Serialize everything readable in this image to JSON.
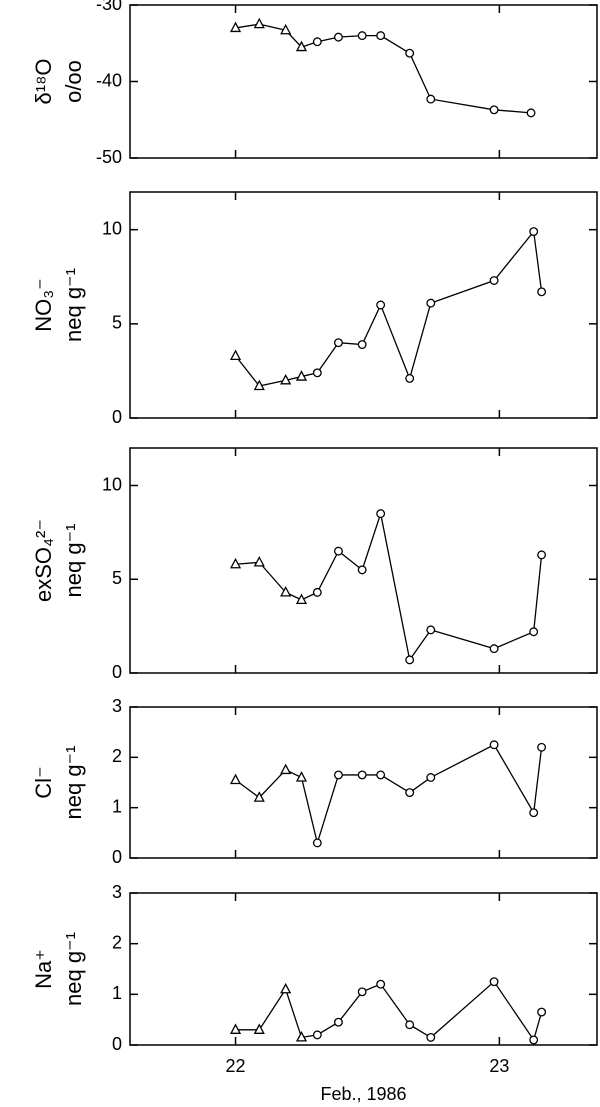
{
  "chart_data": [
    {
      "type": "line",
      "ylabel": [
        "δ¹⁸O",
        "o/oo"
      ],
      "x": [
        22.0,
        22.09,
        22.19,
        22.25,
        22.31,
        22.39,
        22.48,
        22.55,
        22.66,
        22.74,
        22.98,
        23.12
      ],
      "values": [
        -33,
        -32.5,
        -33.3,
        -35.5,
        -34.8,
        -34.2,
        -34,
        -34,
        -36.3,
        -42.3,
        -43.7,
        -44.1
      ],
      "markers": [
        "triangle",
        "triangle",
        "triangle",
        "triangle",
        "circle",
        "circle",
        "circle",
        "circle",
        "circle",
        "circle",
        "circle",
        "circle"
      ],
      "xlim": [
        21.6,
        23.37
      ],
      "xticks": [
        22,
        23
      ],
      "ylim": [
        -50,
        -30
      ],
      "yticks": [
        -50,
        -40,
        -30
      ],
      "color": "#000000"
    },
    {
      "type": "line",
      "ylabel": [
        "NO₃⁻",
        "neq g⁻¹"
      ],
      "x": [
        22.0,
        22.09,
        22.19,
        22.25,
        22.31,
        22.39,
        22.48,
        22.55,
        22.66,
        22.74,
        22.98,
        23.13,
        23.16
      ],
      "values": [
        3.3,
        1.7,
        2.0,
        2.2,
        2.4,
        4.0,
        3.9,
        6.0,
        2.1,
        6.1,
        7.3,
        9.9,
        6.7
      ],
      "markers": [
        "triangle",
        "triangle",
        "triangle",
        "triangle",
        "circle",
        "circle",
        "circle",
        "circle",
        "circle",
        "circle",
        "circle",
        "circle",
        "circle"
      ],
      "xlim": [
        21.6,
        23.37
      ],
      "xticks": [
        22,
        23
      ],
      "ylim": [
        0,
        12
      ],
      "yticks": [
        0,
        5,
        10
      ],
      "color": "#000000"
    },
    {
      "type": "line",
      "ylabel": [
        "exSO₄²⁻",
        "neq g⁻¹"
      ],
      "x": [
        22.0,
        22.09,
        22.19,
        22.25,
        22.31,
        22.39,
        22.48,
        22.55,
        22.66,
        22.74,
        22.98,
        23.13,
        23.16
      ],
      "values": [
        5.8,
        5.9,
        4.3,
        3.9,
        4.3,
        6.5,
        5.5,
        8.5,
        0.7,
        2.3,
        1.3,
        2.2,
        6.3
      ],
      "markers": [
        "triangle",
        "triangle",
        "triangle",
        "triangle",
        "circle",
        "circle",
        "circle",
        "circle",
        "circle",
        "circle",
        "circle",
        "circle",
        "circle"
      ],
      "xlim": [
        21.6,
        23.37
      ],
      "xticks": [
        22,
        23
      ],
      "ylim": [
        0,
        12
      ],
      "yticks": [
        0,
        5,
        10
      ],
      "color": "#000000"
    },
    {
      "type": "line",
      "ylabel": [
        "Cl⁻",
        "neq g⁻¹"
      ],
      "x": [
        22.0,
        22.09,
        22.19,
        22.25,
        22.31,
        22.39,
        22.48,
        22.55,
        22.66,
        22.74,
        22.98,
        23.13,
        23.16
      ],
      "values": [
        1.55,
        1.2,
        1.75,
        1.6,
        0.3,
        1.65,
        1.65,
        1.65,
        1.3,
        1.6,
        2.25,
        0.9,
        2.2
      ],
      "markers": [
        "triangle",
        "triangle",
        "triangle",
        "triangle",
        "circle",
        "circle",
        "circle",
        "circle",
        "circle",
        "circle",
        "circle",
        "circle",
        "circle"
      ],
      "xlim": [
        21.6,
        23.37
      ],
      "xticks": [
        22,
        23
      ],
      "ylim": [
        0,
        3
      ],
      "yticks": [
        0,
        1,
        2,
        3
      ],
      "color": "#000000"
    },
    {
      "type": "line",
      "ylabel": [
        "Na⁺",
        "neq g⁻¹"
      ],
      "xlabel": "Feb., 1986",
      "x": [
        22.0,
        22.09,
        22.19,
        22.25,
        22.31,
        22.39,
        22.48,
        22.55,
        22.66,
        22.74,
        22.98,
        23.13,
        23.16
      ],
      "values": [
        0.3,
        0.3,
        1.1,
        0.15,
        0.2,
        0.45,
        1.05,
        1.2,
        0.4,
        0.15,
        1.25,
        0.1,
        0.65
      ],
      "markers": [
        "triangle",
        "triangle",
        "triangle",
        "triangle",
        "circle",
        "circle",
        "circle",
        "circle",
        "circle",
        "circle",
        "circle",
        "circle",
        "circle"
      ],
      "xlim": [
        21.6,
        23.37
      ],
      "xticks": [
        22,
        23
      ],
      "ylim": [
        0,
        3
      ],
      "yticks": [
        0,
        1,
        2,
        3
      ],
      "color": "#000000"
    }
  ]
}
